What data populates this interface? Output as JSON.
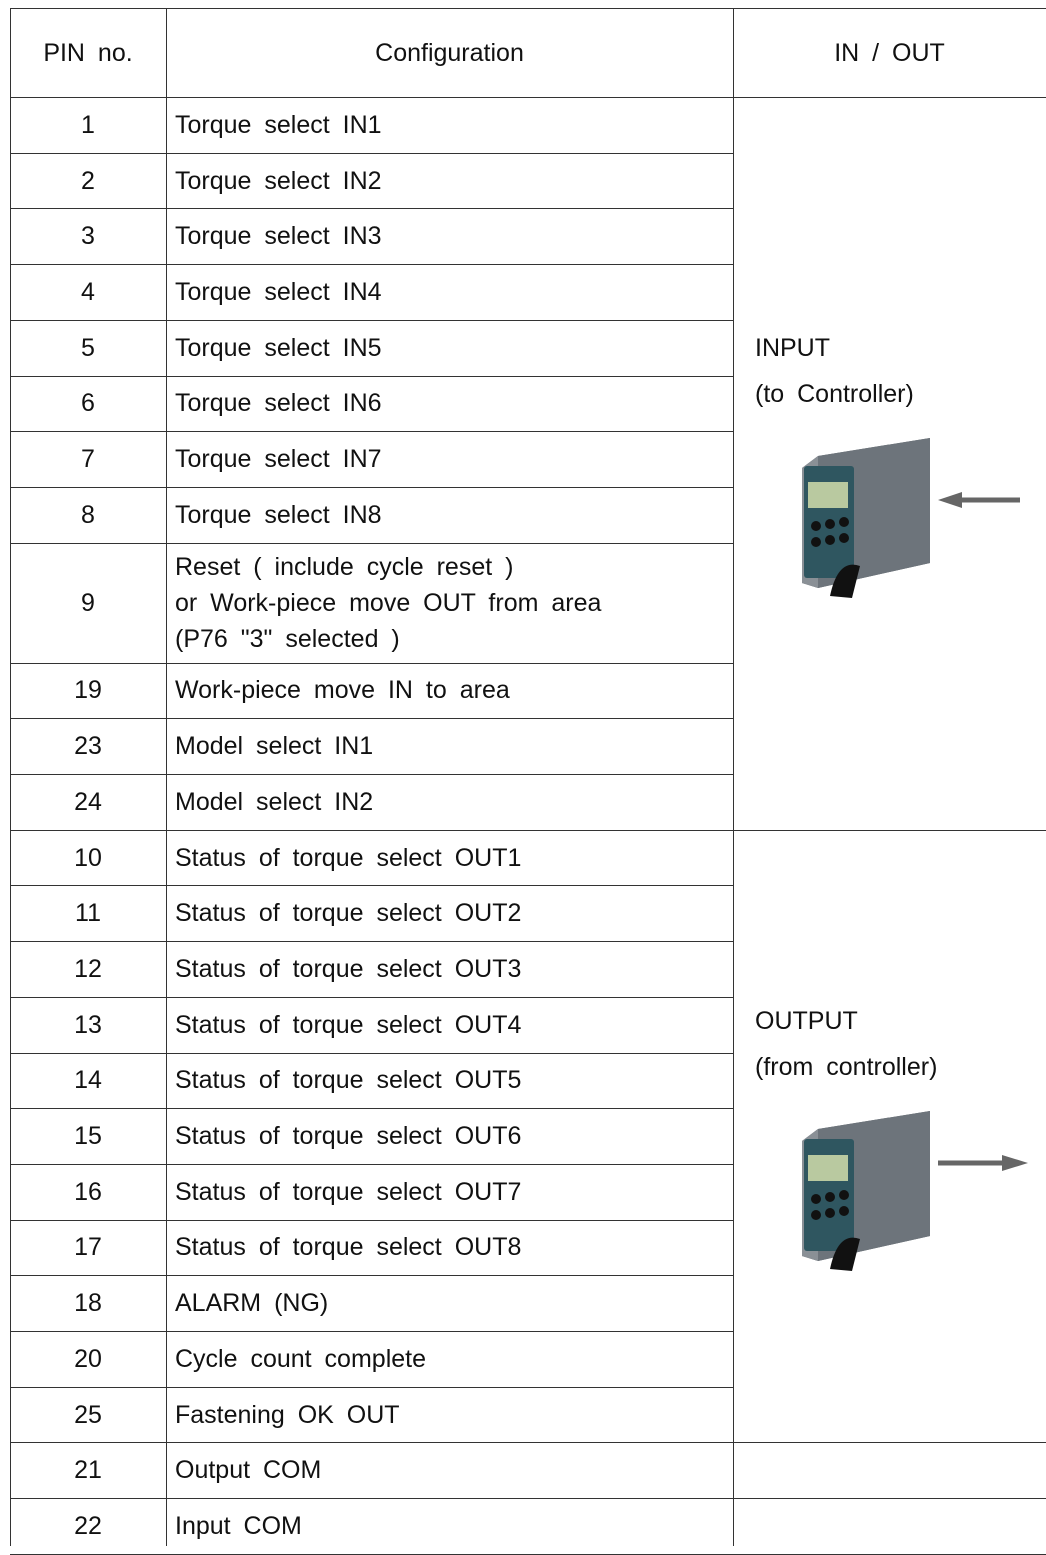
{
  "table": {
    "header": [
      "PIN no.",
      "Configuration",
      "IN / OUT"
    ],
    "groups": [
      {
        "label": [
          "INPUT",
          "(to Controller)"
        ],
        "direction": "in",
        "rows": [
          [
            "1",
            "Torque select IN1"
          ],
          [
            "2",
            "Torque select IN2"
          ],
          [
            "3",
            "Torque select IN3"
          ],
          [
            "4",
            "Torque select IN4"
          ],
          [
            "5",
            "Torque select IN5"
          ],
          [
            "6",
            "Torque select IN6"
          ],
          [
            "7",
            "Torque select IN7"
          ],
          [
            "8",
            "Torque select IN8"
          ],
          [
            "9",
            [
              "Reset ( include cycle reset )",
              "or Work-piece move OUT from area",
              "(P76 \"3\" selected )"
            ]
          ],
          [
            "19",
            "Work-piece move IN to area"
          ],
          [
            "23",
            "Model select IN1"
          ],
          [
            "24",
            "Model select IN2"
          ]
        ]
      },
      {
        "label": [
          "OUTPUT",
          "(from controller)"
        ],
        "direction": "out",
        "rows": [
          [
            "10",
            "Status of torque select OUT1"
          ],
          [
            "11",
            "Status of torque select OUT2"
          ],
          [
            "12",
            "Status of torque select OUT3"
          ],
          [
            "13",
            "Status of torque select OUT4"
          ],
          [
            "14",
            "Status of torque select OUT5"
          ],
          [
            "15",
            "Status of torque select OUT6"
          ],
          [
            "16",
            "Status of torque select OUT7"
          ],
          [
            "17",
            "Status of torque select OUT8"
          ],
          [
            "18",
            "ALARM (NG)"
          ],
          [
            "20",
            "Cycle count complete"
          ],
          [
            "25",
            "Fastening OK OUT"
          ]
        ]
      },
      {
        "rows": [
          [
            "21",
            "Output COM"
          ]
        ]
      },
      {
        "rows": [
          [
            "22",
            "Input COM"
          ]
        ]
      }
    ]
  }
}
